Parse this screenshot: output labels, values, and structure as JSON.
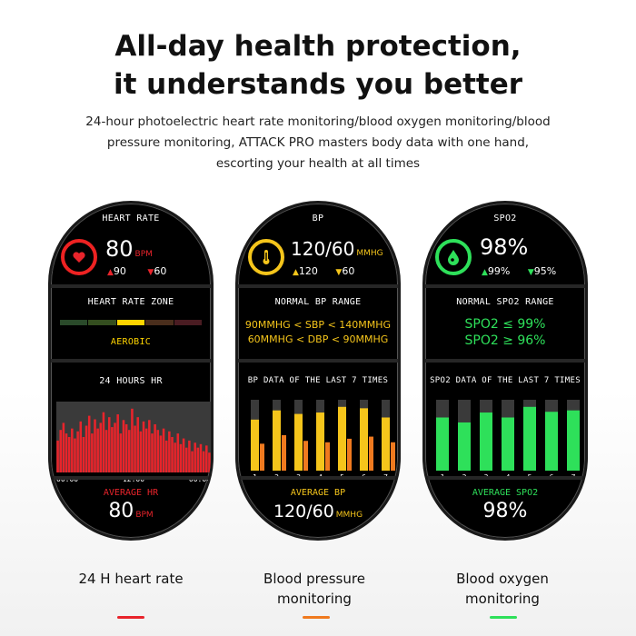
{
  "headline": {
    "line1": "All-day health protection,",
    "line2": "it understands you better",
    "sub1": "24-hour photoelectric heart rate monitoring/blood oxygen monitoring/blood",
    "sub2": "pressure monitoring, ATTACK PRO masters body data with one hand,",
    "sub3": "escorting your health at all times"
  },
  "colors": {
    "hr": "#e8242b",
    "bp": "#f5c51b",
    "bp_low": "#f07a1f",
    "spo2": "#2ee05a",
    "zone_active": "#ffd400"
  },
  "watches": {
    "hr": {
      "title": "HEART RATE",
      "icon": "heart-icon",
      "value": "80",
      "unit": "BPM",
      "high_arrow": "▲",
      "high": "90",
      "low_arrow": "▼",
      "low": "60",
      "zone_title": "HEART RATE ZONE",
      "zone_label": "AEROBIC",
      "chart_title": "24 HOURS HR",
      "avg_label": "AVERAGE HR",
      "avg_value": "80",
      "avg_unit": "BPM"
    },
    "bp": {
      "title": "BP",
      "icon": "thermometer-icon",
      "value": "120/60",
      "unit": "MMHG",
      "high_arrow": "▲",
      "high": "120",
      "low_arrow": "▼",
      "low": "60",
      "range_title": "NORMAL BP RANGE",
      "range1": "90MMHG < SBP < 140MMHG",
      "range2": "60MMHG < DBP < 90MMHG",
      "chart_title": "BP DATA OF THE LAST 7 TIMES",
      "avg_label": "AVERAGE BP",
      "avg_value": "120/60",
      "avg_unit": "MMHG"
    },
    "spo2": {
      "title": "SPO2",
      "icon": "oxygen-drop-icon",
      "value": "98%",
      "high_arrow": "▲",
      "high": "99%",
      "low_arrow": "▼",
      "low": "95%",
      "range_title": "NORMAL SPO2 RANGE",
      "range1": "SPO2 ≤ 99%",
      "range2": "SPO2 ≥ 96%",
      "chart_title": "SPO2 DATA OF THE LAST 7 TIMES",
      "avg_label": "AVERAGE SPO2",
      "avg_value": "98%"
    }
  },
  "captions": {
    "hr": "24 H heart rate",
    "bp_line1": "Blood pressure",
    "bp_line2": "monitoring",
    "spo2_line1": "Blood oxygen",
    "spo2_line2": "monitoring"
  },
  "chart_data": [
    {
      "type": "bar",
      "title": "24 HOURS HR",
      "x_ticks": [
        "00:00",
        "12:00",
        "00:00"
      ],
      "ylim": [
        0,
        1
      ],
      "values": [
        0.45,
        0.6,
        0.7,
        0.55,
        0.5,
        0.62,
        0.48,
        0.58,
        0.72,
        0.5,
        0.66,
        0.8,
        0.55,
        0.75,
        0.62,
        0.7,
        0.85,
        0.6,
        0.78,
        0.64,
        0.7,
        0.82,
        0.55,
        0.74,
        0.68,
        0.6,
        0.9,
        0.66,
        0.78,
        0.58,
        0.72,
        0.62,
        0.74,
        0.55,
        0.68,
        0.6,
        0.52,
        0.62,
        0.45,
        0.58,
        0.5,
        0.42,
        0.55,
        0.4,
        0.48,
        0.35,
        0.45,
        0.3,
        0.42,
        0.35,
        0.4,
        0.3,
        0.38,
        0.28
      ]
    },
    {
      "type": "bar",
      "title": "BP DATA OF THE LAST 7 TIMES",
      "categories": [
        "1",
        "2",
        "3",
        "4",
        "5",
        "6",
        "7"
      ],
      "ylim": [
        0,
        1
      ],
      "series": [
        {
          "values": [
            0.72,
            0.85,
            0.8,
            0.82,
            0.9,
            0.88,
            0.75
          ]
        },
        {
          "values": [
            0.38,
            0.5,
            0.42,
            0.4,
            0.45,
            0.48,
            0.4
          ]
        }
      ]
    },
    {
      "type": "bar",
      "title": "SPO2 DATA OF THE LAST 7 TIMES",
      "categories": [
        "1",
        "2",
        "3",
        "4",
        "5",
        "6",
        "7"
      ],
      "ylim": [
        0,
        1
      ],
      "values": [
        0.75,
        0.68,
        0.82,
        0.75,
        0.9,
        0.83,
        0.85
      ]
    }
  ]
}
